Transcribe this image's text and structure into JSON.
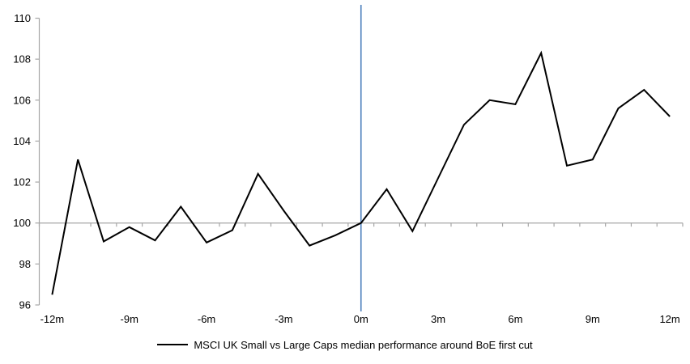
{
  "chart_data": {
    "type": "line",
    "title": "",
    "legend_position": "bottom-center",
    "grid": "baseline-only",
    "x": [
      -12,
      -11,
      -10,
      -9,
      -8,
      -7,
      -6,
      -5,
      -4,
      -3,
      -2,
      -1,
      0,
      1,
      2,
      3,
      4,
      5,
      6,
      7,
      8,
      9,
      10,
      11,
      12
    ],
    "series": [
      {
        "name": "MSCI UK Small vs Large Caps median performance around BoE first cut",
        "values": [
          96.5,
          103.1,
          99.1,
          99.8,
          99.15,
          100.8,
          99.05,
          99.65,
          102.4,
          100.6,
          98.9,
          99.4,
          100.0,
          101.65,
          99.6,
          102.2,
          104.8,
          106.0,
          105.8,
          108.3,
          102.8,
          103.1,
          105.6,
          106.5,
          105.2
        ]
      }
    ],
    "xlabel": "",
    "ylabel": "",
    "xlim": [
      -12.5,
      12.5
    ],
    "ylim": [
      96,
      110
    ],
    "y_ticks": [
      96,
      98,
      100,
      102,
      104,
      106,
      108,
      110
    ],
    "x_tick_positions": [
      -12,
      -9,
      -6,
      -3,
      0,
      3,
      6,
      9,
      12
    ],
    "x_tick_labels": [
      "-12m",
      "-9m",
      "-6m",
      "-3m",
      "0m",
      "3m",
      "6m",
      "9m",
      "12m"
    ],
    "baseline_value": 100,
    "event_line_x": 0,
    "colors": {
      "series_line": "#000000",
      "event_line": "#4f81bd",
      "axis": "#a6a6a6",
      "text": "#000000"
    }
  }
}
